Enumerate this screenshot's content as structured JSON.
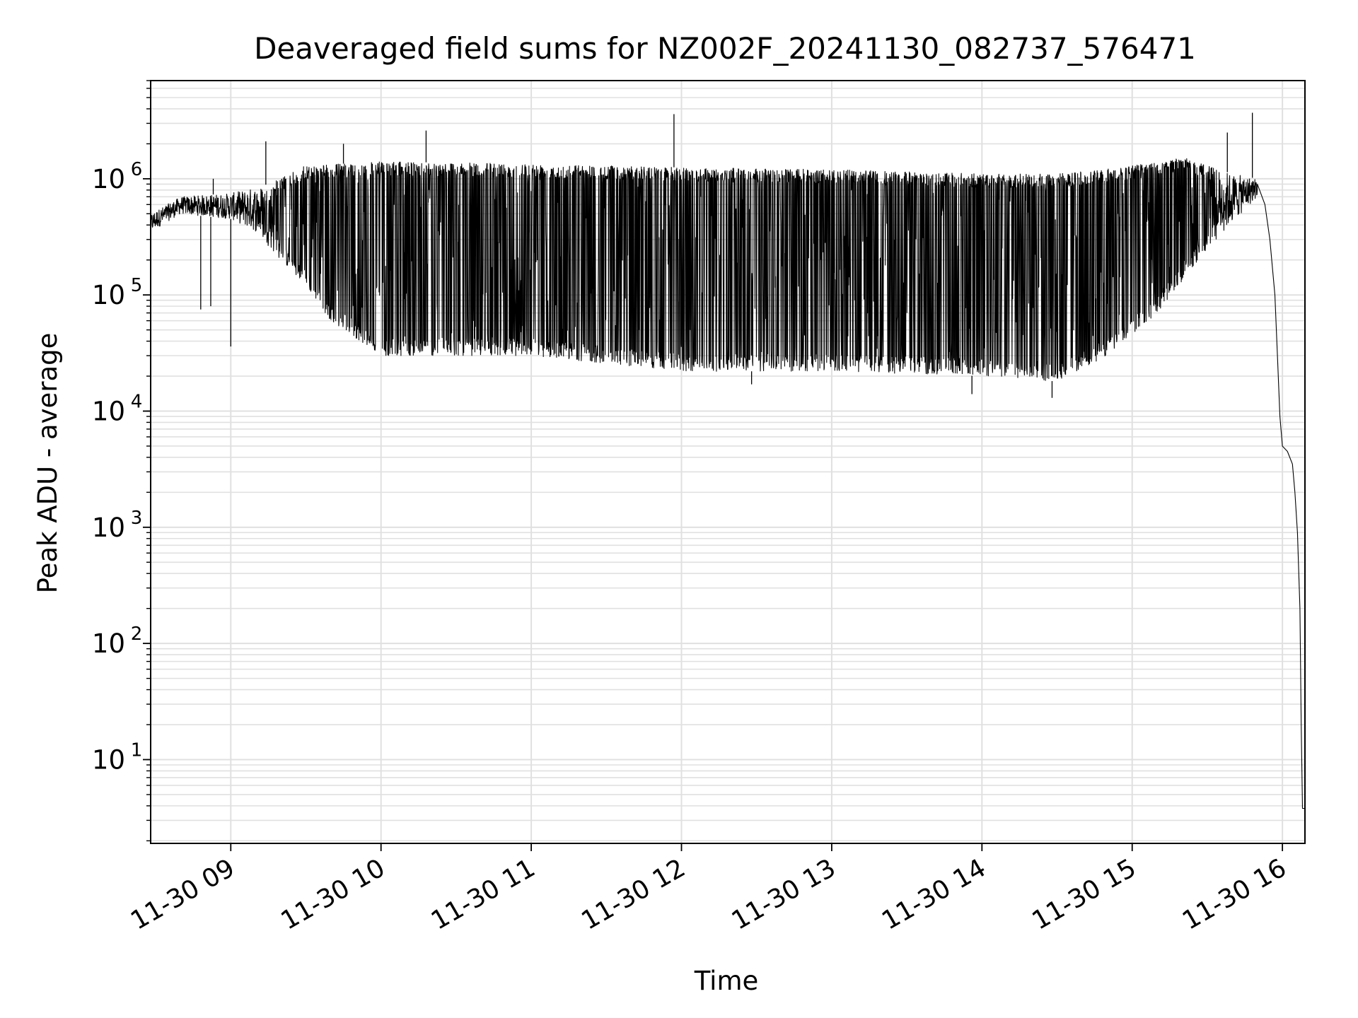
{
  "chart_data": {
    "type": "line",
    "title": "Deaveraged field sums for NZ002F_20241130_082737_576471",
    "xlabel": "Time",
    "ylabel": "Peak ADU - average",
    "yscale": "log",
    "ylim": [
      1.9,
      7000000
    ],
    "xlim": [
      "2024-11-30 08:28",
      "2024-11-30 16:09"
    ],
    "grid": {
      "major": true,
      "minor_y": true,
      "color": "#e0e0e0"
    },
    "line_color": "#000000",
    "x_ticks": [
      "2024-11-30 09:00",
      "2024-11-30 10:00",
      "2024-11-30 11:00",
      "2024-11-30 12:00",
      "2024-11-30 13:00",
      "2024-11-30 14:00",
      "2024-11-30 15:00",
      "2024-11-30 16:00"
    ],
    "x_tick_labels": [
      "11-30 09",
      "11-30 10",
      "11-30 11",
      "11-30 12",
      "11-30 13",
      "11-30 14",
      "11-30 15",
      "11-30 16"
    ],
    "y_ticks": [
      {
        "value": 10,
        "base": "10",
        "exp": "1"
      },
      {
        "value": 100,
        "base": "10",
        "exp": "2"
      },
      {
        "value": 1000,
        "base": "10",
        "exp": "3"
      },
      {
        "value": 10000,
        "base": "10",
        "exp": "4"
      },
      {
        "value": 100000,
        "base": "10",
        "exp": "5"
      },
      {
        "value": 1000000,
        "base": "10",
        "exp": "6"
      }
    ],
    "series": [
      {
        "upper_envelope": [
          [
            "2024-11-30 08:28",
            500000
          ],
          [
            "2024-11-30 08:40",
            700000
          ],
          [
            "2024-11-30 09:00",
            750000
          ],
          [
            "2024-11-30 09:15",
            900000
          ],
          [
            "2024-11-30 09:30",
            1300000
          ],
          [
            "2024-11-30 10:00",
            1400000
          ],
          [
            "2024-11-30 11:00",
            1350000
          ],
          [
            "2024-11-30 12:00",
            1250000
          ],
          [
            "2024-11-30 13:00",
            1200000
          ],
          [
            "2024-11-30 14:00",
            1100000
          ],
          [
            "2024-11-30 14:30",
            1100000
          ],
          [
            "2024-11-30 15:00",
            1300000
          ],
          [
            "2024-11-30 15:20",
            1550000
          ],
          [
            "2024-11-30 15:40",
            1100000
          ],
          [
            "2024-11-30 15:50",
            1000000
          ]
        ],
        "lower_envelope": [
          [
            "2024-11-30 08:28",
            350000
          ],
          [
            "2024-11-30 08:40",
            500000
          ],
          [
            "2024-11-30 09:00",
            450000
          ],
          [
            "2024-11-30 09:10",
            350000
          ],
          [
            "2024-11-30 09:20",
            200000
          ],
          [
            "2024-11-30 09:30",
            120000
          ],
          [
            "2024-11-30 09:40",
            60000
          ],
          [
            "2024-11-30 10:00",
            30000
          ],
          [
            "2024-11-30 11:00",
            30000
          ],
          [
            "2024-11-30 12:00",
            22000
          ],
          [
            "2024-11-30 13:00",
            22000
          ],
          [
            "2024-11-30 14:00",
            20000
          ],
          [
            "2024-11-30 14:30",
            18000
          ],
          [
            "2024-11-30 14:50",
            30000
          ],
          [
            "2024-11-30 15:10",
            70000
          ],
          [
            "2024-11-30 15:30",
            250000
          ],
          [
            "2024-11-30 15:50",
            700000
          ]
        ],
        "tail": [
          [
            "2024-11-30 15:50",
            900000
          ],
          [
            "2024-11-30 15:53",
            600000
          ],
          [
            "2024-11-30 15:55",
            300000
          ],
          [
            "2024-11-30 15:57",
            100000
          ],
          [
            "2024-11-30 15:58",
            30000
          ],
          [
            "2024-11-30 15:59",
            9000
          ],
          [
            "2024-11-30 16:00",
            5000
          ],
          [
            "2024-11-30 16:02",
            4500
          ],
          [
            "2024-11-30 16:04",
            3500
          ],
          [
            "2024-11-30 16:05",
            2000
          ],
          [
            "2024-11-30 16:06",
            900
          ],
          [
            "2024-11-30 16:07",
            200
          ],
          [
            "2024-11-30 16:07:30",
            20
          ],
          [
            "2024-11-30 16:08",
            3.8
          ],
          [
            "2024-11-30 16:09",
            3.8
          ]
        ],
        "spikes": [
          [
            "2024-11-30 09:14",
            2100000
          ],
          [
            "2024-11-30 09:45",
            2000000
          ],
          [
            "2024-11-30 10:18",
            2600000
          ],
          [
            "2024-11-30 11:57",
            3600000
          ],
          [
            "2024-11-30 15:38",
            2500000
          ],
          [
            "2024-11-30 15:48",
            3700000
          ],
          [
            "2024-11-30 08:53",
            1000000
          ]
        ],
        "dips": [
          [
            "2024-11-30 08:48",
            75000
          ],
          [
            "2024-11-30 08:52",
            80000
          ],
          [
            "2024-11-30 09:00",
            36000
          ],
          [
            "2024-11-30 14:28",
            13000
          ],
          [
            "2024-11-30 13:56",
            14000
          ],
          [
            "2024-11-30 12:28",
            17000
          ]
        ]
      }
    ]
  }
}
